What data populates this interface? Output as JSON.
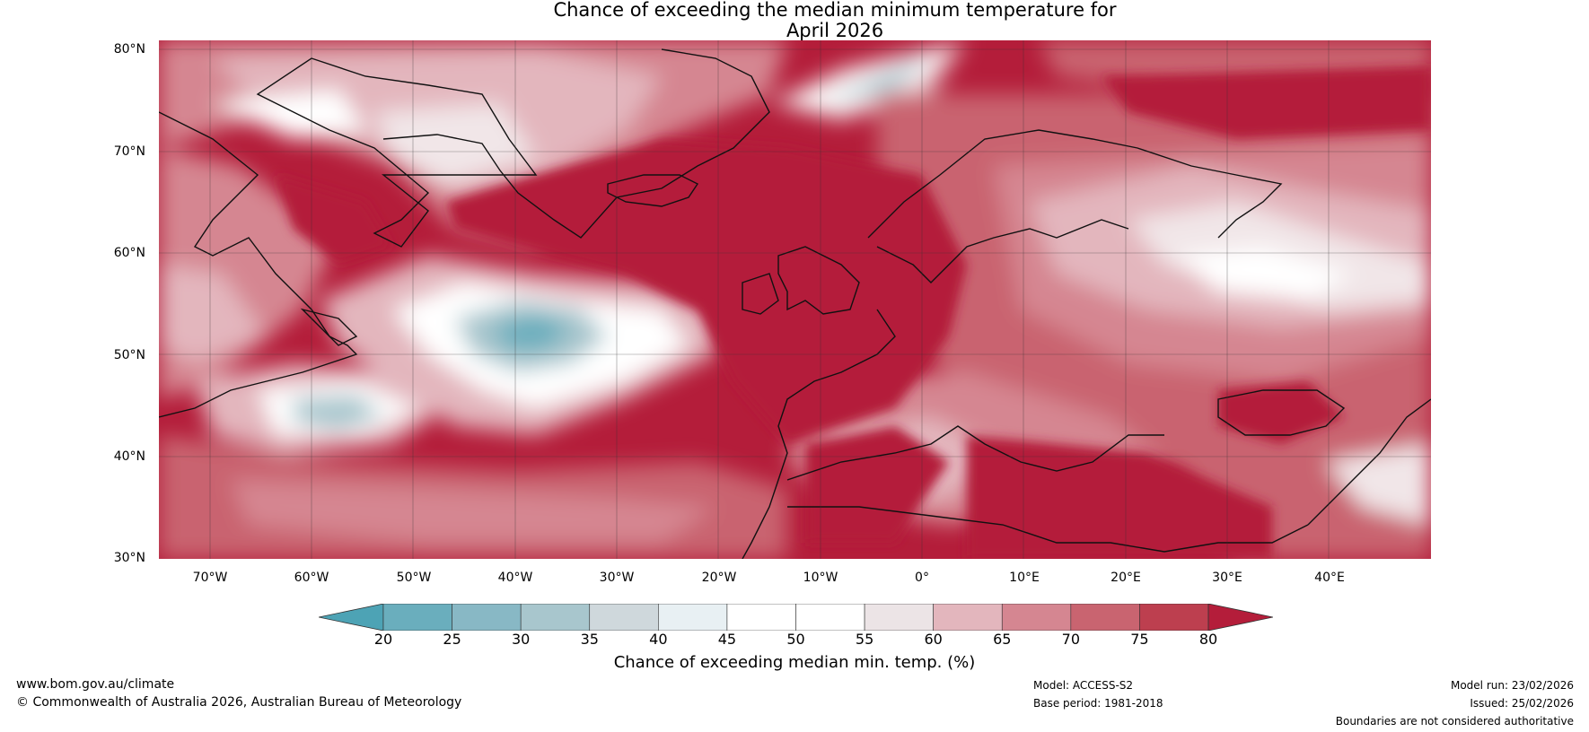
{
  "title": {
    "line1": "Chance of exceeding the median minimum temperature for",
    "line2": "April 2026"
  },
  "map": {
    "lat_labels": [
      "80°N",
      "70°N",
      "60°N",
      "50°N",
      "40°N",
      "30°N"
    ],
    "lon_labels": [
      "70°W",
      "60°W",
      "50°W",
      "40°W",
      "30°W",
      "20°W",
      "10°W",
      "0°",
      "10°E",
      "20°E",
      "30°E",
      "40°E"
    ],
    "lon_range": [
      -75,
      50
    ],
    "lat_range": [
      30,
      81
    ]
  },
  "colorbar": {
    "ticks": [
      "20",
      "25",
      "30",
      "35",
      "40",
      "45",
      "50",
      "55",
      "60",
      "65",
      "70",
      "75",
      "80"
    ],
    "label": "Chance of exceeding median min. temp. (%)",
    "colors": [
      "#4da3b5",
      "#6aaebd",
      "#88b8c5",
      "#a8c6cd",
      "#cfd8dc",
      "#e8f0f3",
      "#ffffff",
      "#ffffff",
      "#ece4e6",
      "#e3b6bd",
      "#d58691",
      "#c96470",
      "#bd3f4f",
      "#b41d3a"
    ]
  },
  "footer": {
    "website": "www.bom.gov.au/climate",
    "copyright": "© Commonwealth of Australia 2026, Australian Bureau of Meteorology",
    "model": "Model: ACCESS-S2",
    "base_period": "Base period: 1981-2018",
    "model_run": "Model run: 23/02/2026",
    "issued": "Issued: 25/02/2026",
    "disclaimer": "Boundaries are not considered authoritative"
  }
}
